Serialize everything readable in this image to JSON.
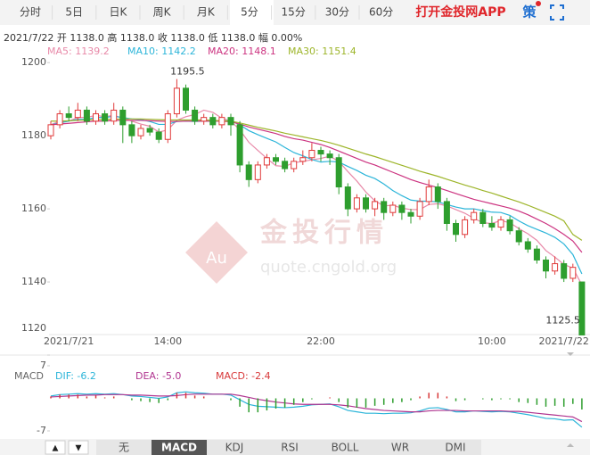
{
  "tabs": [
    "分时",
    "5日",
    "日K",
    "周K",
    "月K",
    "5分",
    "15分",
    "30分",
    "60分"
  ],
  "app_link": "打开金投网APP",
  "strategy": "策",
  "info": "2021/7/22  开 1138.0  高 1138.0  收 1138.0  低 1138.0  幅 0.00%",
  "watermark": {
    "logo": "Au",
    "brand": "金投行情",
    "url": "quote.cngold.org"
  },
  "nav": [
    "▲",
    "▼"
  ],
  "indicator_tabs": [
    "无",
    "MACD",
    "KDJ",
    "RSI",
    "BOLL",
    "WR",
    "DMI"
  ],
  "chart_data": [
    {
      "type": "candlestick",
      "categories": [
        null,
        null,
        "2021/7/21",
        null,
        null,
        null,
        null,
        null,
        null,
        null,
        null,
        null,
        null,
        "14:00",
        null,
        null,
        null,
        null,
        null,
        null,
        null,
        null,
        null,
        null,
        null,
        null,
        null,
        null,
        null,
        null,
        "22:00",
        null,
        null,
        null,
        null,
        null,
        null,
        null,
        null,
        null,
        null,
        null,
        null,
        null,
        null,
        null,
        null,
        null,
        null,
        "10:00",
        null,
        null,
        null,
        null,
        null,
        null,
        null,
        "2021/7/22",
        null,
        null
      ],
      "candles": [
        [
          1180,
          1184,
          1179,
          1183
        ],
        [
          1183,
          1187,
          1182,
          1186
        ],
        [
          1186,
          1188,
          1184,
          1185
        ],
        [
          1185,
          1189,
          1184,
          1187
        ],
        [
          1187,
          1188,
          1183,
          1184
        ],
        [
          1184,
          1187,
          1183,
          1186
        ],
        [
          1186,
          1187,
          1183,
          1184
        ],
        [
          1184,
          1189,
          1183,
          1187
        ],
        [
          1187,
          1188,
          1178,
          1183
        ],
        [
          1183,
          1184,
          1178,
          1180
        ],
        [
          1180,
          1183,
          1179,
          1182
        ],
        [
          1182,
          1183,
          1180,
          1181
        ],
        [
          1181,
          1182,
          1178,
          1179
        ],
        [
          1179,
          1187,
          1178,
          1186
        ],
        [
          1186,
          1195.5,
          1185,
          1193
        ],
        [
          1193,
          1194,
          1186,
          1187
        ],
        [
          1187,
          1188,
          1183,
          1184
        ],
        [
          1184,
          1186,
          1183,
          1185
        ],
        [
          1185,
          1186,
          1182,
          1183
        ],
        [
          1183,
          1186,
          1182,
          1185
        ],
        [
          1185,
          1186,
          1180,
          1183
        ],
        [
          1183,
          1184,
          1170,
          1172
        ],
        [
          1172,
          1173,
          1166,
          1168
        ],
        [
          1168,
          1173,
          1167,
          1172
        ],
        [
          1172,
          1175,
          1171,
          1174
        ],
        [
          1174,
          1175,
          1172,
          1173
        ],
        [
          1173,
          1174,
          1170,
          1171
        ],
        [
          1171,
          1174,
          1170,
          1173
        ],
        [
          1173,
          1176,
          1172,
          1174
        ],
        [
          1174,
          1178,
          1173,
          1176
        ],
        [
          1176,
          1177,
          1173,
          1175
        ],
        [
          1175,
          1176,
          1172,
          1174
        ],
        [
          1174,
          1175,
          1164,
          1166
        ],
        [
          1166,
          1167,
          1158,
          1160
        ],
        [
          1160,
          1164,
          1159,
          1163
        ],
        [
          1163,
          1164,
          1159,
          1160
        ],
        [
          1160,
          1163,
          1158,
          1162
        ],
        [
          1162,
          1163,
          1157,
          1159
        ],
        [
          1159,
          1162,
          1158,
          1161
        ],
        [
          1161,
          1162,
          1157,
          1159
        ],
        [
          1159,
          1160,
          1156,
          1158
        ],
        [
          1158,
          1163,
          1157,
          1162
        ],
        [
          1162,
          1168,
          1161,
          1166
        ],
        [
          1166,
          1167,
          1160,
          1162
        ],
        [
          1162,
          1163,
          1154,
          1156
        ],
        [
          1156,
          1157,
          1151,
          1153
        ],
        [
          1153,
          1158,
          1152,
          1157
        ],
        [
          1157,
          1160,
          1156,
          1159
        ],
        [
          1159,
          1160,
          1155,
          1156
        ],
        [
          1156,
          1158,
          1154,
          1155
        ],
        [
          1155,
          1158,
          1154,
          1157
        ],
        [
          1157,
          1158,
          1153,
          1154
        ],
        [
          1154,
          1155,
          1150,
          1151
        ],
        [
          1151,
          1152,
          1148,
          1149
        ],
        [
          1149,
          1150,
          1145,
          1146
        ],
        [
          1146,
          1147,
          1141,
          1143
        ],
        [
          1143,
          1147,
          1142,
          1145
        ],
        [
          1145,
          1146,
          1140,
          1141
        ],
        [
          1141,
          1145,
          1140,
          1144
        ],
        [
          1140,
          1140,
          1125.5,
          1125.5
        ]
      ],
      "up_color": "#e03a3a",
      "down_color": "#2e9e2e",
      "series": [
        {
          "name": "MA5: 1139.2",
          "color": "#e889a8",
          "values": [
            1183,
            1184,
            1184,
            1185,
            1185,
            1185.6,
            1185.2,
            1185.6,
            1184.8,
            1184,
            1183.2,
            1182.6,
            1181,
            1181.6,
            1184.2,
            1185.2,
            1185.8,
            1187,
            1186.4,
            1184.8,
            1184,
            1181.6,
            1178.2,
            1176,
            1173.8,
            1171.8,
            1171.6,
            1172.6,
            1173,
            1173.4,
            1173.8,
            1174.4,
            1173,
            1170.2,
            1167.6,
            1164.6,
            1162.2,
            1160.8,
            1161,
            1160.2,
            1159.8,
            1159.8,
            1161.2,
            1161.4,
            1160.8,
            1159.8,
            1158.8,
            1157.4,
            1156.2,
            1156,
            1156.8,
            1156.2,
            1154.6,
            1153.2,
            1151.4,
            1148.6,
            1146.8,
            1144.8,
            1143.8,
            1139.2
          ]
        },
        {
          "name": "MA10: 1142.2",
          "color": "#2cb5d9",
          "values": [
            1183,
            1183.5,
            1184,
            1184.5,
            1184.5,
            1185,
            1185,
            1185.3,
            1185,
            1184.6,
            1184.4,
            1183.9,
            1183.1,
            1183.1,
            1183.9,
            1184,
            1183.9,
            1184,
            1184,
            1184.1,
            1184.1,
            1183,
            1181.4,
            1180.3,
            1179.3,
            1178.3,
            1176.8,
            1175.4,
            1174.5,
            1173.5,
            1172.8,
            1173,
            1172.8,
            1171.6,
            1170.5,
            1169.2,
            1168.3,
            1166.8,
            1165,
            1163.6,
            1162.4,
            1162.1,
            1162.1,
            1161.9,
            1161.2,
            1160.5,
            1160,
            1160,
            1159.5,
            1159.1,
            1159,
            1158.2,
            1156.7,
            1155.4,
            1154.4,
            1153.4,
            1152.2,
            1150.4,
            1147.5,
            1142.2
          ]
        },
        {
          "name": "MA20: 1148.1",
          "color": "#cc3380",
          "values": [
            1183,
            1183.2,
            1183.4,
            1183.6,
            1183.8,
            1184,
            1184,
            1184.2,
            1184.2,
            1184.2,
            1184.2,
            1184.1,
            1184,
            1183.9,
            1183.9,
            1184,
            1184,
            1184,
            1184,
            1184,
            1183.8,
            1183.2,
            1182.4,
            1181.8,
            1181.2,
            1180.6,
            1179.8,
            1179.2,
            1178.8,
            1178.2,
            1177.6,
            1176.8,
            1175.8,
            1174.8,
            1173.8,
            1172.8,
            1172,
            1171,
            1170,
            1169,
            1168,
            1167.2,
            1166.5,
            1165.8,
            1165,
            1164.2,
            1163.4,
            1162.6,
            1162,
            1161.4,
            1160.8,
            1160.2,
            1159.4,
            1158.4,
            1157.2,
            1156,
            1154.6,
            1153,
            1151.2,
            1148.1
          ]
        },
        {
          "name": "MA30: 1151.4",
          "color": "#9db52a",
          "values": [
            1184,
            1184,
            1184.1,
            1184.2,
            1184.3,
            1184.4,
            1184.5,
            1184.5,
            1184.6,
            1184.6,
            1184.6,
            1184.5,
            1184.4,
            1184.3,
            1184.3,
            1184.3,
            1184.3,
            1184.3,
            1184.2,
            1184.1,
            1184,
            1183.5,
            1182.9,
            1182.3,
            1181.8,
            1181.3,
            1180.7,
            1180.2,
            1179.7,
            1179.2,
            1178.7,
            1178.1,
            1177.4,
            1176.6,
            1175.8,
            1175,
            1174.3,
            1173.5,
            1172.7,
            1171.9,
            1171.1,
            1170.3,
            1169.6,
            1168.9,
            1168.1,
            1167.3,
            1166.5,
            1165.8,
            1165,
            1164.3,
            1163.5,
            1162.7,
            1161.9,
            1161,
            1160,
            1159,
            1158,
            1156.7,
            1153,
            1151.4
          ]
        }
      ],
      "annotations": [
        {
          "text": "1195.5",
          "at": "max"
        },
        {
          "text": "1125.5",
          "at": "min"
        }
      ],
      "ylim": [
        1120,
        1202
      ],
      "yticks": [
        1120,
        1140,
        1160,
        1180,
        1200
      ]
    },
    {
      "type": "macd",
      "title": "MACD",
      "series": [
        {
          "name": "DIF: -6.2",
          "color": "#2cb5d9",
          "values": [
            0.5,
            0.8,
            0.9,
            1.0,
            0.9,
            1.0,
            0.9,
            1.0,
            0.8,
            0.5,
            0.4,
            0.2,
            0,
            0.3,
            1.2,
            1.4,
            1.2,
            1.1,
            0.9,
            0.9,
            0.7,
            -0.3,
            -1.3,
            -1.7,
            -1.8,
            -1.9,
            -2.0,
            -1.9,
            -1.7,
            -1.4,
            -1.3,
            -1.2,
            -1.8,
            -2.6,
            -2.9,
            -3.2,
            -3.2,
            -3.3,
            -3.2,
            -3.2,
            -3.1,
            -2.7,
            -2.1,
            -2.0,
            -2.4,
            -2.9,
            -2.9,
            -2.7,
            -2.8,
            -2.9,
            -2.8,
            -2.9,
            -3.2,
            -3.5,
            -3.9,
            -4.3,
            -4.4,
            -4.7,
            -4.6,
            -6.2
          ]
        },
        {
          "name": "DEA: -5.0",
          "color": "#b03590",
          "values": [
            0.3,
            0.4,
            0.5,
            0.6,
            0.7,
            0.7,
            0.8,
            0.8,
            0.8,
            0.7,
            0.7,
            0.6,
            0.5,
            0.5,
            0.6,
            0.8,
            0.9,
            0.9,
            0.9,
            0.9,
            0.9,
            0.6,
            0.2,
            -0.2,
            -0.5,
            -0.8,
            -1.0,
            -1.2,
            -1.3,
            -1.3,
            -1.3,
            -1.3,
            -1.4,
            -1.6,
            -1.9,
            -2.2,
            -2.4,
            -2.6,
            -2.7,
            -2.8,
            -2.9,
            -2.9,
            -2.7,
            -2.6,
            -2.6,
            -2.6,
            -2.7,
            -2.7,
            -2.7,
            -2.7,
            -2.7,
            -2.8,
            -2.8,
            -3.0,
            -3.2,
            -3.4,
            -3.6,
            -3.8,
            -4.0,
            -5.0
          ]
        },
        {
          "name": "MACD: -2.4",
          "color": "#d8393a",
          "bars": true,
          "values": [
            0.4,
            0.8,
            0.8,
            0.8,
            0.4,
            0.6,
            0.2,
            0.4,
            0,
            -0.4,
            -0.6,
            -0.8,
            -1.0,
            -0.4,
            1.2,
            1.2,
            0.6,
            0.4,
            0,
            0,
            -0.4,
            -1.8,
            -3.0,
            -3.0,
            -2.6,
            -2.2,
            -2.0,
            -1.4,
            -0.8,
            -0.2,
            0,
            0.2,
            -0.8,
            -2.0,
            -2.0,
            -2.0,
            -1.6,
            -1.4,
            -1.0,
            -0.8,
            -0.4,
            0.4,
            1.2,
            1.2,
            0.4,
            -0.6,
            -0.4,
            0,
            -0.2,
            -0.4,
            -0.2,
            -0.2,
            -0.8,
            -1.0,
            -1.4,
            -1.8,
            -1.6,
            -1.8,
            -1.2,
            -2.4
          ]
        }
      ],
      "down_color": "#2e9e2e",
      "ylim": [
        -7,
        7
      ],
      "yticks": [
        7,
        -7
      ]
    }
  ]
}
